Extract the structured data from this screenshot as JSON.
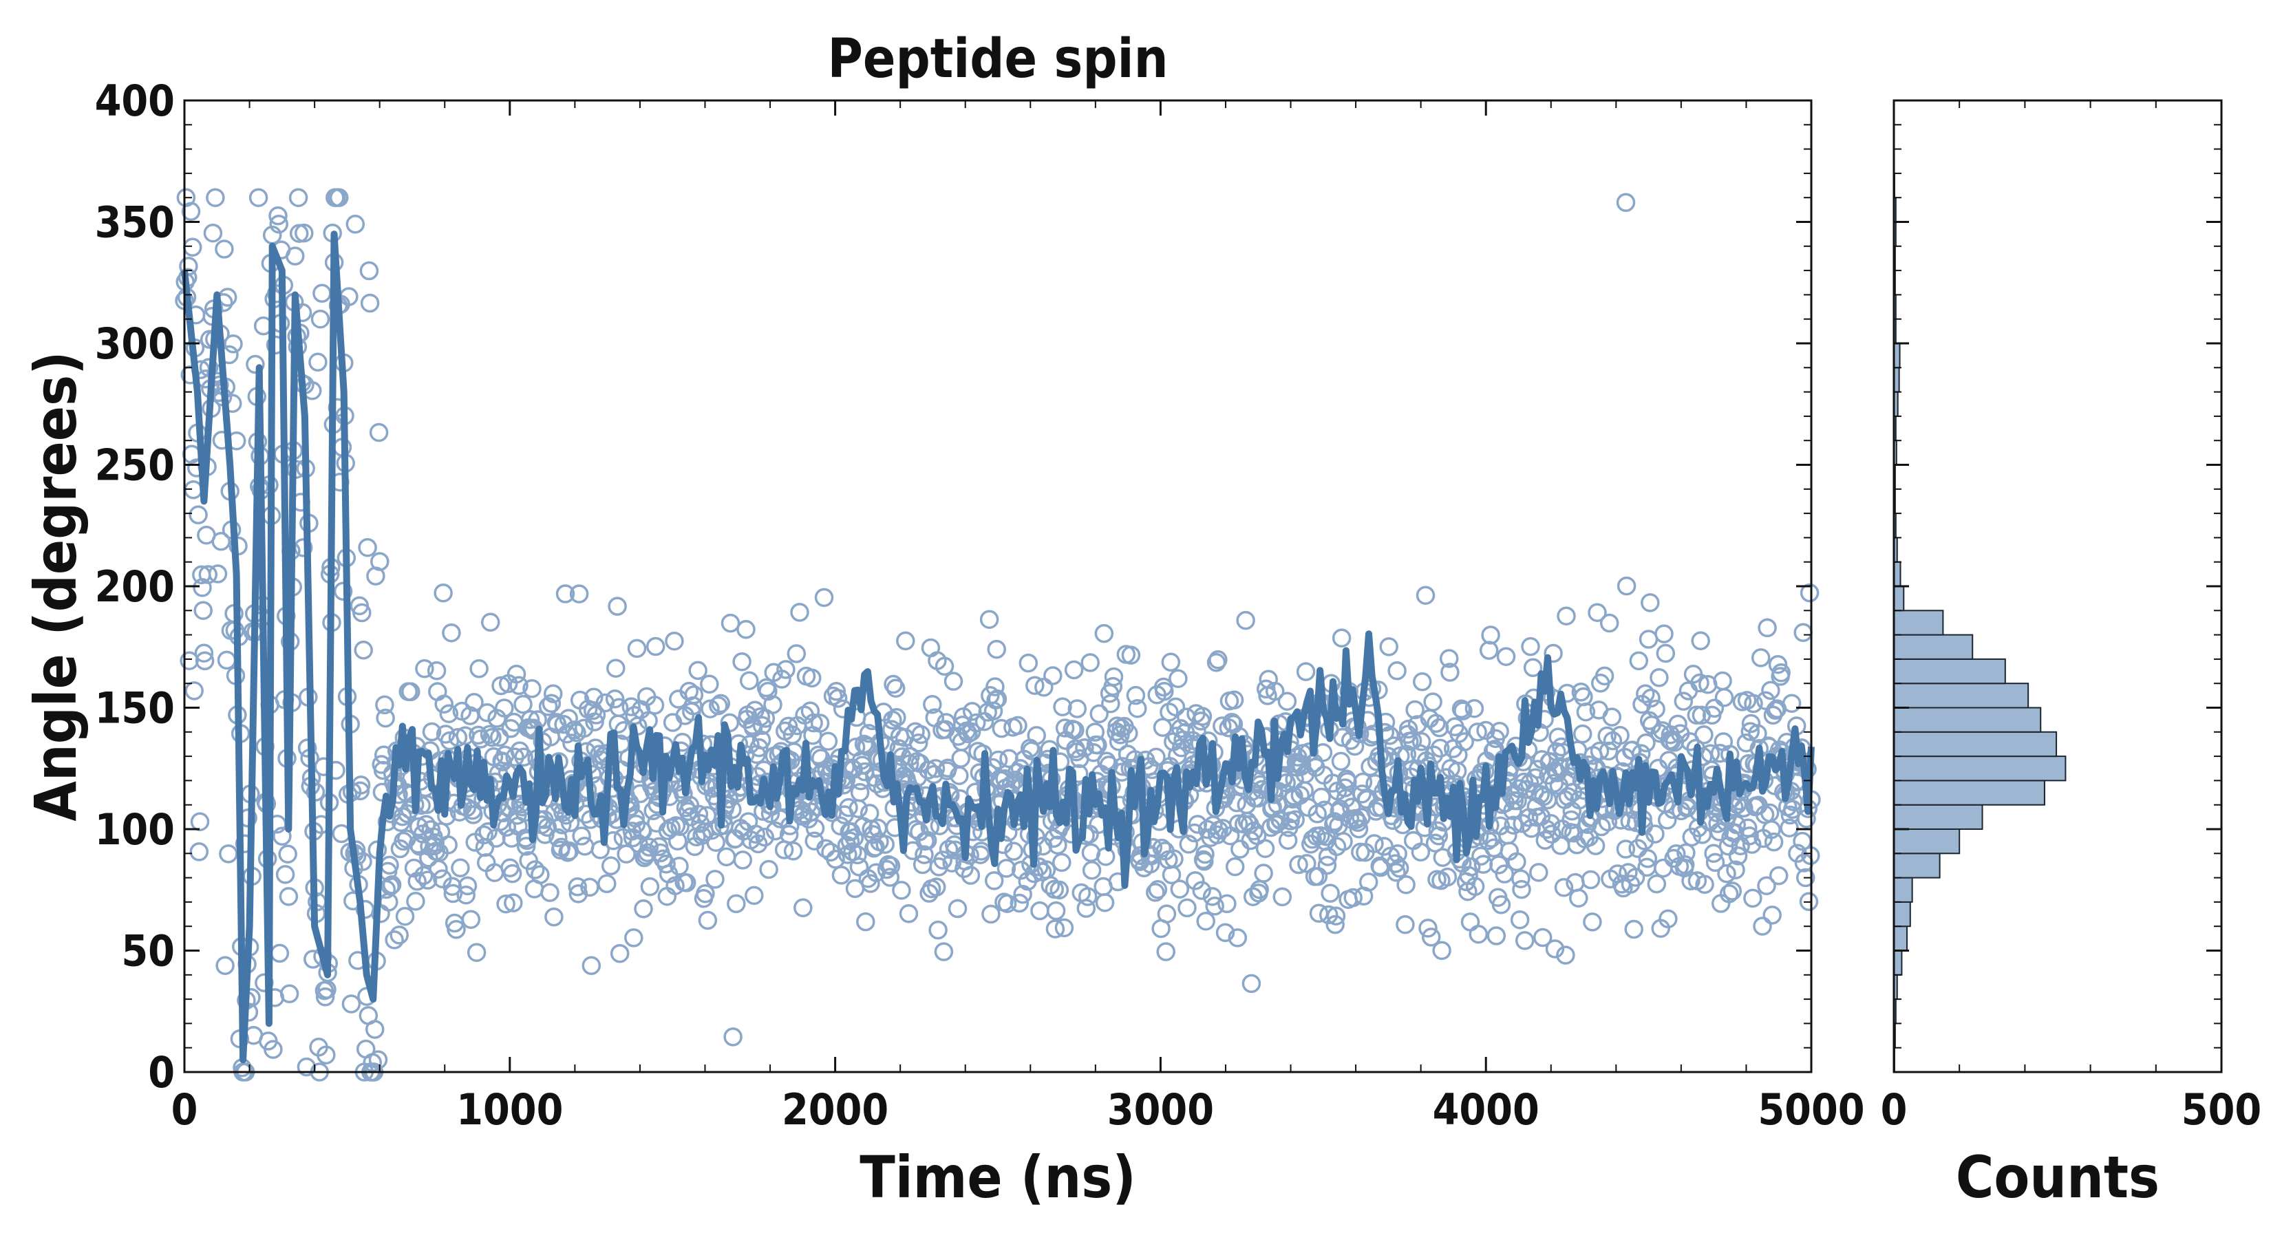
{
  "colors": {
    "scatter_edge": "#8aa6c8",
    "line": "#4576a8",
    "hist_fill": "#9db6d2",
    "hist_edge": "#1c2530",
    "axis": "#111111"
  },
  "chart_data": [
    {
      "type": "scatter",
      "title": "Peptide spin",
      "xlabel": "Time (ns)",
      "ylabel": "Angle (degrees)",
      "xlim": [
        0,
        5000
      ],
      "ylim": [
        0,
        400
      ],
      "xticks": [
        "0",
        "1000",
        "2000",
        "3000",
        "4000",
        "5000"
      ],
      "yticks": [
        "0",
        "50",
        "100",
        "150",
        "200",
        "250",
        "300",
        "350",
        "400"
      ],
      "grid": false,
      "series": [
        {
          "type": "scatter",
          "marker": "open-circle",
          "n_points": 2000,
          "baseline_after_600ns": 115,
          "spread": 25
        },
        {
          "type": "line",
          "description_values": [
            [
              0,
              330
            ],
            [
              40,
              280
            ],
            [
              60,
              235
            ],
            [
              100,
              320
            ],
            [
              140,
              250
            ],
            [
              160,
              205
            ],
            [
              180,
              5
            ],
            [
              200,
              60
            ],
            [
              230,
              290
            ],
            [
              260,
              20
            ],
            [
              270,
              340
            ],
            [
              300,
              330
            ],
            [
              320,
              100
            ],
            [
              340,
              320
            ],
            [
              370,
              270
            ],
            [
              400,
              60
            ],
            [
              440,
              40
            ],
            [
              460,
              345
            ],
            [
              490,
              280
            ],
            [
              510,
              100
            ],
            [
              540,
              70
            ],
            [
              560,
              40
            ],
            [
              580,
              30
            ],
            [
              600,
              90
            ],
            [
              650,
              140
            ],
            [
              700,
              120
            ],
            [
              800,
              115
            ],
            [
              1000,
              115
            ],
            [
              1200,
              115
            ],
            [
              1600,
              130
            ],
            [
              2000,
              110
            ],
            [
              2100,
              165
            ],
            [
              2200,
              110
            ],
            [
              3000,
              110
            ],
            [
              3650,
              160
            ],
            [
              3700,
              110
            ],
            [
              4000,
              115
            ],
            [
              4200,
              160
            ],
            [
              4300,
              115
            ],
            [
              5000,
              125
            ]
          ]
        }
      ]
    },
    {
      "type": "bar",
      "orientation": "horizontal",
      "xlabel": "Counts",
      "xlim": [
        0,
        500
      ],
      "xticks": [
        "0",
        "500"
      ],
      "bins": [
        {
          "y0": 0,
          "y1": 10,
          "count": 1
        },
        {
          "y0": 10,
          "y1": 20,
          "count": 2
        },
        {
          "y0": 20,
          "y1": 30,
          "count": 3
        },
        {
          "y0": 30,
          "y1": 40,
          "count": 5
        },
        {
          "y0": 40,
          "y1": 50,
          "count": 12
        },
        {
          "y0": 50,
          "y1": 60,
          "count": 20
        },
        {
          "y0": 60,
          "y1": 70,
          "count": 25
        },
        {
          "y0": 70,
          "y1": 80,
          "count": 28
        },
        {
          "y0": 80,
          "y1": 90,
          "count": 70
        },
        {
          "y0": 90,
          "y1": 100,
          "count": 100
        },
        {
          "y0": 100,
          "y1": 110,
          "count": 135
        },
        {
          "y0": 110,
          "y1": 120,
          "count": 230
        },
        {
          "y0": 120,
          "y1": 130,
          "count": 262
        },
        {
          "y0": 130,
          "y1": 140,
          "count": 248
        },
        {
          "y0": 140,
          "y1": 150,
          "count": 224
        },
        {
          "y0": 150,
          "y1": 160,
          "count": 205
        },
        {
          "y0": 160,
          "y1": 170,
          "count": 170
        },
        {
          "y0": 170,
          "y1": 180,
          "count": 120
        },
        {
          "y0": 180,
          "y1": 190,
          "count": 75
        },
        {
          "y0": 190,
          "y1": 200,
          "count": 15
        },
        {
          "y0": 200,
          "y1": 210,
          "count": 10
        },
        {
          "y0": 210,
          "y1": 220,
          "count": 5
        },
        {
          "y0": 220,
          "y1": 230,
          "count": 3
        },
        {
          "y0": 230,
          "y1": 240,
          "count": 2
        },
        {
          "y0": 240,
          "y1": 250,
          "count": 2
        },
        {
          "y0": 250,
          "y1": 260,
          "count": 4
        },
        {
          "y0": 260,
          "y1": 270,
          "count": 3
        },
        {
          "y0": 270,
          "y1": 280,
          "count": 6
        },
        {
          "y0": 280,
          "y1": 290,
          "count": 8
        },
        {
          "y0": 290,
          "y1": 300,
          "count": 9
        },
        {
          "y0": 300,
          "y1": 310,
          "count": 3
        },
        {
          "y0": 310,
          "y1": 320,
          "count": 3
        },
        {
          "y0": 320,
          "y1": 330,
          "count": 2
        },
        {
          "y0": 330,
          "y1": 340,
          "count": 2
        },
        {
          "y0": 340,
          "y1": 350,
          "count": 3
        },
        {
          "y0": 350,
          "y1": 360,
          "count": 3
        },
        {
          "y0": 360,
          "y1": 370,
          "count": 1
        }
      ]
    }
  ]
}
